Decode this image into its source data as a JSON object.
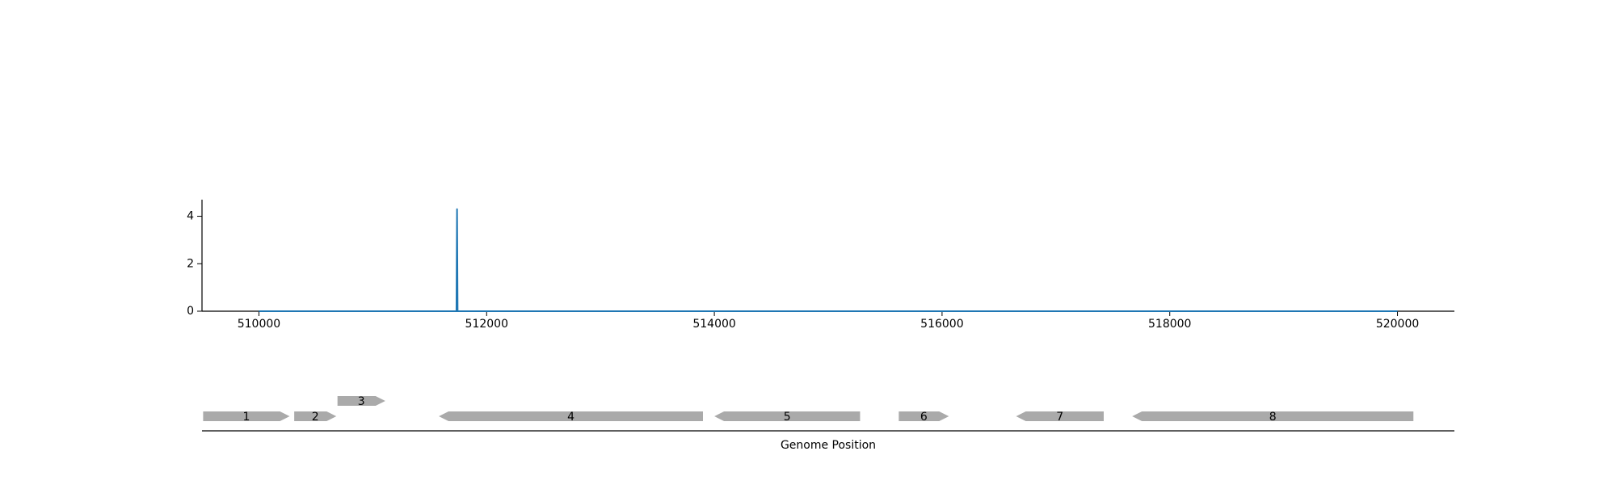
{
  "chart_data": [
    {
      "type": "line",
      "title": "",
      "xlabel": "",
      "ylabel": "",
      "xlim": [
        509500,
        520500
      ],
      "ylim": [
        0,
        4.7
      ],
      "xticks": [
        510000,
        512000,
        514000,
        516000,
        518000,
        520000
      ],
      "xtick_labels": [
        "510000",
        "512000",
        "514000",
        "516000",
        "518000",
        "520000"
      ],
      "yticks": [
        0,
        2,
        4
      ],
      "ytick_labels": [
        "0",
        "2",
        "4"
      ],
      "grid": false,
      "legend": "none",
      "series": [
        {
          "color": "#1f77b4",
          "x": [
            510000,
            511735,
            511740,
            511745,
            520000
          ],
          "y": [
            0,
            0,
            4.3,
            0,
            0
          ]
        }
      ]
    },
    {
      "type": "gene-track",
      "xlabel": "Genome Position",
      "xlim": [
        509500,
        520500
      ],
      "color": "#aaaaaa",
      "genes": [
        {
          "label": "1",
          "start": 509510,
          "end": 510270,
          "strand": "+",
          "row": 0
        },
        {
          "label": "2",
          "start": 510310,
          "end": 510680,
          "strand": "+",
          "row": 0
        },
        {
          "label": "3",
          "start": 510690,
          "end": 511110,
          "strand": "+",
          "row": 1
        },
        {
          "label": "4",
          "start": 511580,
          "end": 513900,
          "strand": "-",
          "row": 0
        },
        {
          "label": "5",
          "start": 514000,
          "end": 515280,
          "strand": "-",
          "row": 0
        },
        {
          "label": "6",
          "start": 515620,
          "end": 516060,
          "strand": "+",
          "row": 0
        },
        {
          "label": "7",
          "start": 516650,
          "end": 517420,
          "strand": "-",
          "row": 0
        },
        {
          "label": "8",
          "start": 517670,
          "end": 520140,
          "strand": "-",
          "row": 0
        }
      ]
    }
  ]
}
